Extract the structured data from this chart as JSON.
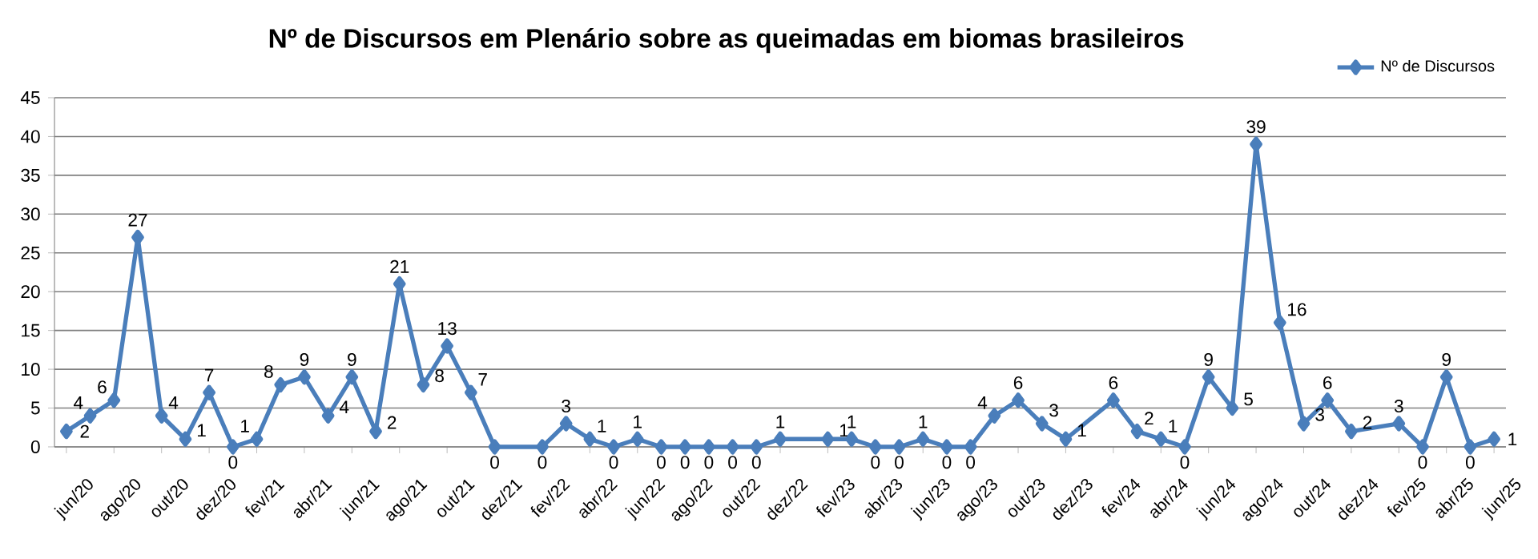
{
  "chart_data": {
    "type": "line",
    "title": "Nº de Discursos  em Plenário  sobre as queimadas  em biomas brasileiros",
    "x": [
      "2020-06",
      "2020-07",
      "2020-08",
      "2020-09",
      "2020-10",
      "2020-11",
      "2020-12",
      "2021-01",
      "2021-02",
      "2021-03",
      "2021-04",
      "2021-05",
      "2021-06",
      "2021-07",
      "2021-08",
      "2021-09",
      "2021-10",
      "2021-11",
      "2021-12",
      "2022-02",
      "2022-03",
      "2022-04",
      "2022-05",
      "2022-06",
      "2022-07",
      "2022-08",
      "2022-09",
      "2022-10",
      "2022-11",
      "2022-12",
      "2023-02",
      "2023-03",
      "2023-04",
      "2023-05",
      "2023-06",
      "2023-07",
      "2023-08",
      "2023-09",
      "2023-10",
      "2023-11",
      "2023-12",
      "2024-02",
      "2024-03",
      "2024-04",
      "2024-05",
      "2024-06",
      "2024-07",
      "2024-08",
      "2024-09",
      "2024-10",
      "2024-11",
      "2024-12",
      "2025-02",
      "2025-03",
      "2025-04",
      "2025-05",
      "2025-06"
    ],
    "series": [
      {
        "name": "Nº de Discursos",
        "color": "#4a7ebb",
        "values": [
          2,
          4,
          6,
          27,
          4,
          1,
          7,
          0,
          1,
          8,
          9,
          4,
          9,
          2,
          21,
          8,
          13,
          7,
          0,
          0,
          3,
          1,
          0,
          1,
          0,
          0,
          0,
          0,
          0,
          1,
          1,
          1,
          0,
          0,
          1,
          0,
          0,
          4,
          6,
          3,
          1,
          6,
          2,
          1,
          0,
          9,
          5,
          39,
          16,
          3,
          6,
          2,
          3,
          0,
          9,
          0,
          1
        ]
      }
    ],
    "xlim": [
      "2020-05-16",
      "2025-06-16"
    ],
    "xticks": [
      {
        "value": "2020-06",
        "label": "jun/20"
      },
      {
        "value": "2020-08",
        "label": "ago/20"
      },
      {
        "value": "2020-10",
        "label": "out/20"
      },
      {
        "value": "2020-12",
        "label": "dez/20"
      },
      {
        "value": "2021-02",
        "label": "fev/21"
      },
      {
        "value": "2021-04",
        "label": "abr/21"
      },
      {
        "value": "2021-06",
        "label": "jun/21"
      },
      {
        "value": "2021-08",
        "label": "ago/21"
      },
      {
        "value": "2021-10",
        "label": "out/21"
      },
      {
        "value": "2021-12",
        "label": "dez/21"
      },
      {
        "value": "2022-02",
        "label": "fev/22"
      },
      {
        "value": "2022-04",
        "label": "abr/22"
      },
      {
        "value": "2022-06",
        "label": "jun/22"
      },
      {
        "value": "2022-08",
        "label": "ago/22"
      },
      {
        "value": "2022-10",
        "label": "out/22"
      },
      {
        "value": "2022-12",
        "label": "dez/22"
      },
      {
        "value": "2023-02",
        "label": "fev/23"
      },
      {
        "value": "2023-04",
        "label": "abr/23"
      },
      {
        "value": "2023-06",
        "label": "jun/23"
      },
      {
        "value": "2023-08",
        "label": "ago/23"
      },
      {
        "value": "2023-10",
        "label": "out/23"
      },
      {
        "value": "2023-12",
        "label": "dez/23"
      },
      {
        "value": "2024-02",
        "label": "fev/24"
      },
      {
        "value": "2024-04",
        "label": "abr/24"
      },
      {
        "value": "2024-06",
        "label": "jun/24"
      },
      {
        "value": "2024-08",
        "label": "ago/24"
      },
      {
        "value": "2024-10",
        "label": "out/24"
      },
      {
        "value": "2024-12",
        "label": "dez/24"
      },
      {
        "value": "2025-02",
        "label": "fev/25"
      },
      {
        "value": "2025-04",
        "label": "abr/25"
      },
      {
        "value": "2025-06",
        "label": "jun/25"
      }
    ],
    "ylim": [
      0,
      45
    ],
    "yticks": [
      0,
      5,
      10,
      15,
      20,
      25,
      30,
      35,
      40,
      45
    ],
    "grid": "y",
    "legend": "top right",
    "marker": "diamond",
    "line_style": "solid",
    "data_labels": true
  }
}
